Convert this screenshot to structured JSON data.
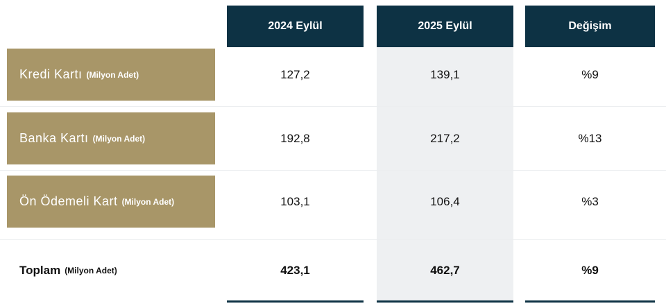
{
  "table": {
    "columns": [
      "2024 Eylül",
      "2025 Eylül",
      "Değişim"
    ],
    "rows": [
      {
        "label": "Kredi Kartı",
        "unit": "(Milyon Adet)",
        "cells": [
          "127,2",
          "139,1",
          "%9"
        ]
      },
      {
        "label": "Banka Kartı",
        "unit": "(Milyon Adet)",
        "cells": [
          "192,8",
          "217,2",
          "%13"
        ]
      },
      {
        "label": "Ön Ödemeli Kart",
        "unit": "(Milyon Adet)",
        "cells": [
          "103,1",
          "106,4",
          "%3"
        ]
      }
    ],
    "total": {
      "label": "Toplam",
      "unit": "(Milyon Adet)",
      "cells": [
        "423,1",
        "462,7",
        "%9"
      ]
    }
  }
}
